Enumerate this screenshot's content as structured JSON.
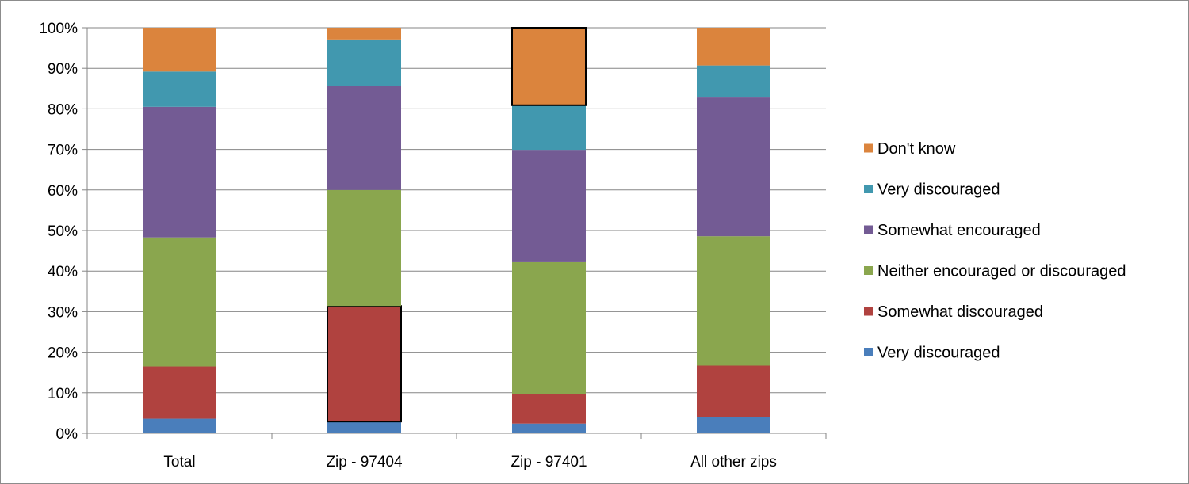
{
  "chart_data": {
    "type": "bar",
    "stacked": true,
    "categories": [
      "Total",
      "Zip - 97404",
      "Zip - 97401",
      "All other zips"
    ],
    "y_axis": {
      "ylim": [
        0,
        100
      ],
      "ticks": [
        0,
        10,
        20,
        30,
        40,
        50,
        60,
        70,
        80,
        90,
        100
      ],
      "tick_labels": [
        "0%",
        "10%",
        "20%",
        "30%",
        "40%",
        "50%",
        "60%",
        "70%",
        "80%",
        "90%",
        "100%"
      ]
    },
    "grid": true,
    "legend_position": "right",
    "series": [
      {
        "name": "Very discouraged",
        "color": "#4a7ebb",
        "values": [
          3.6,
          2.9,
          2.4,
          4.0
        ]
      },
      {
        "name": "Somewhat discouraged",
        "color": "#b0423f",
        "values": [
          12.9,
          28.5,
          7.2,
          12.7
        ]
      },
      {
        "name": "Neither encouraged or discouraged",
        "color": "#8aa64e",
        "values": [
          31.8,
          28.6,
          32.6,
          31.9
        ]
      },
      {
        "name": "Somewhat encouraged",
        "color": "#735b94",
        "values": [
          32.2,
          25.7,
          27.7,
          34.2
        ]
      },
      {
        "name": "Very discouraged",
        "color": "#4198af",
        "values": [
          8.7,
          11.4,
          11.0,
          7.9
        ]
      },
      {
        "name": "Don't know",
        "color": "#db843d",
        "values": [
          10.8,
          2.9,
          19.1,
          9.3
        ]
      }
    ],
    "highlighted_segments": [
      {
        "category": "Zip - 97404",
        "series": "Somewhat discouraged"
      },
      {
        "category": "Zip - 97401",
        "series": "Don't know"
      }
    ]
  }
}
